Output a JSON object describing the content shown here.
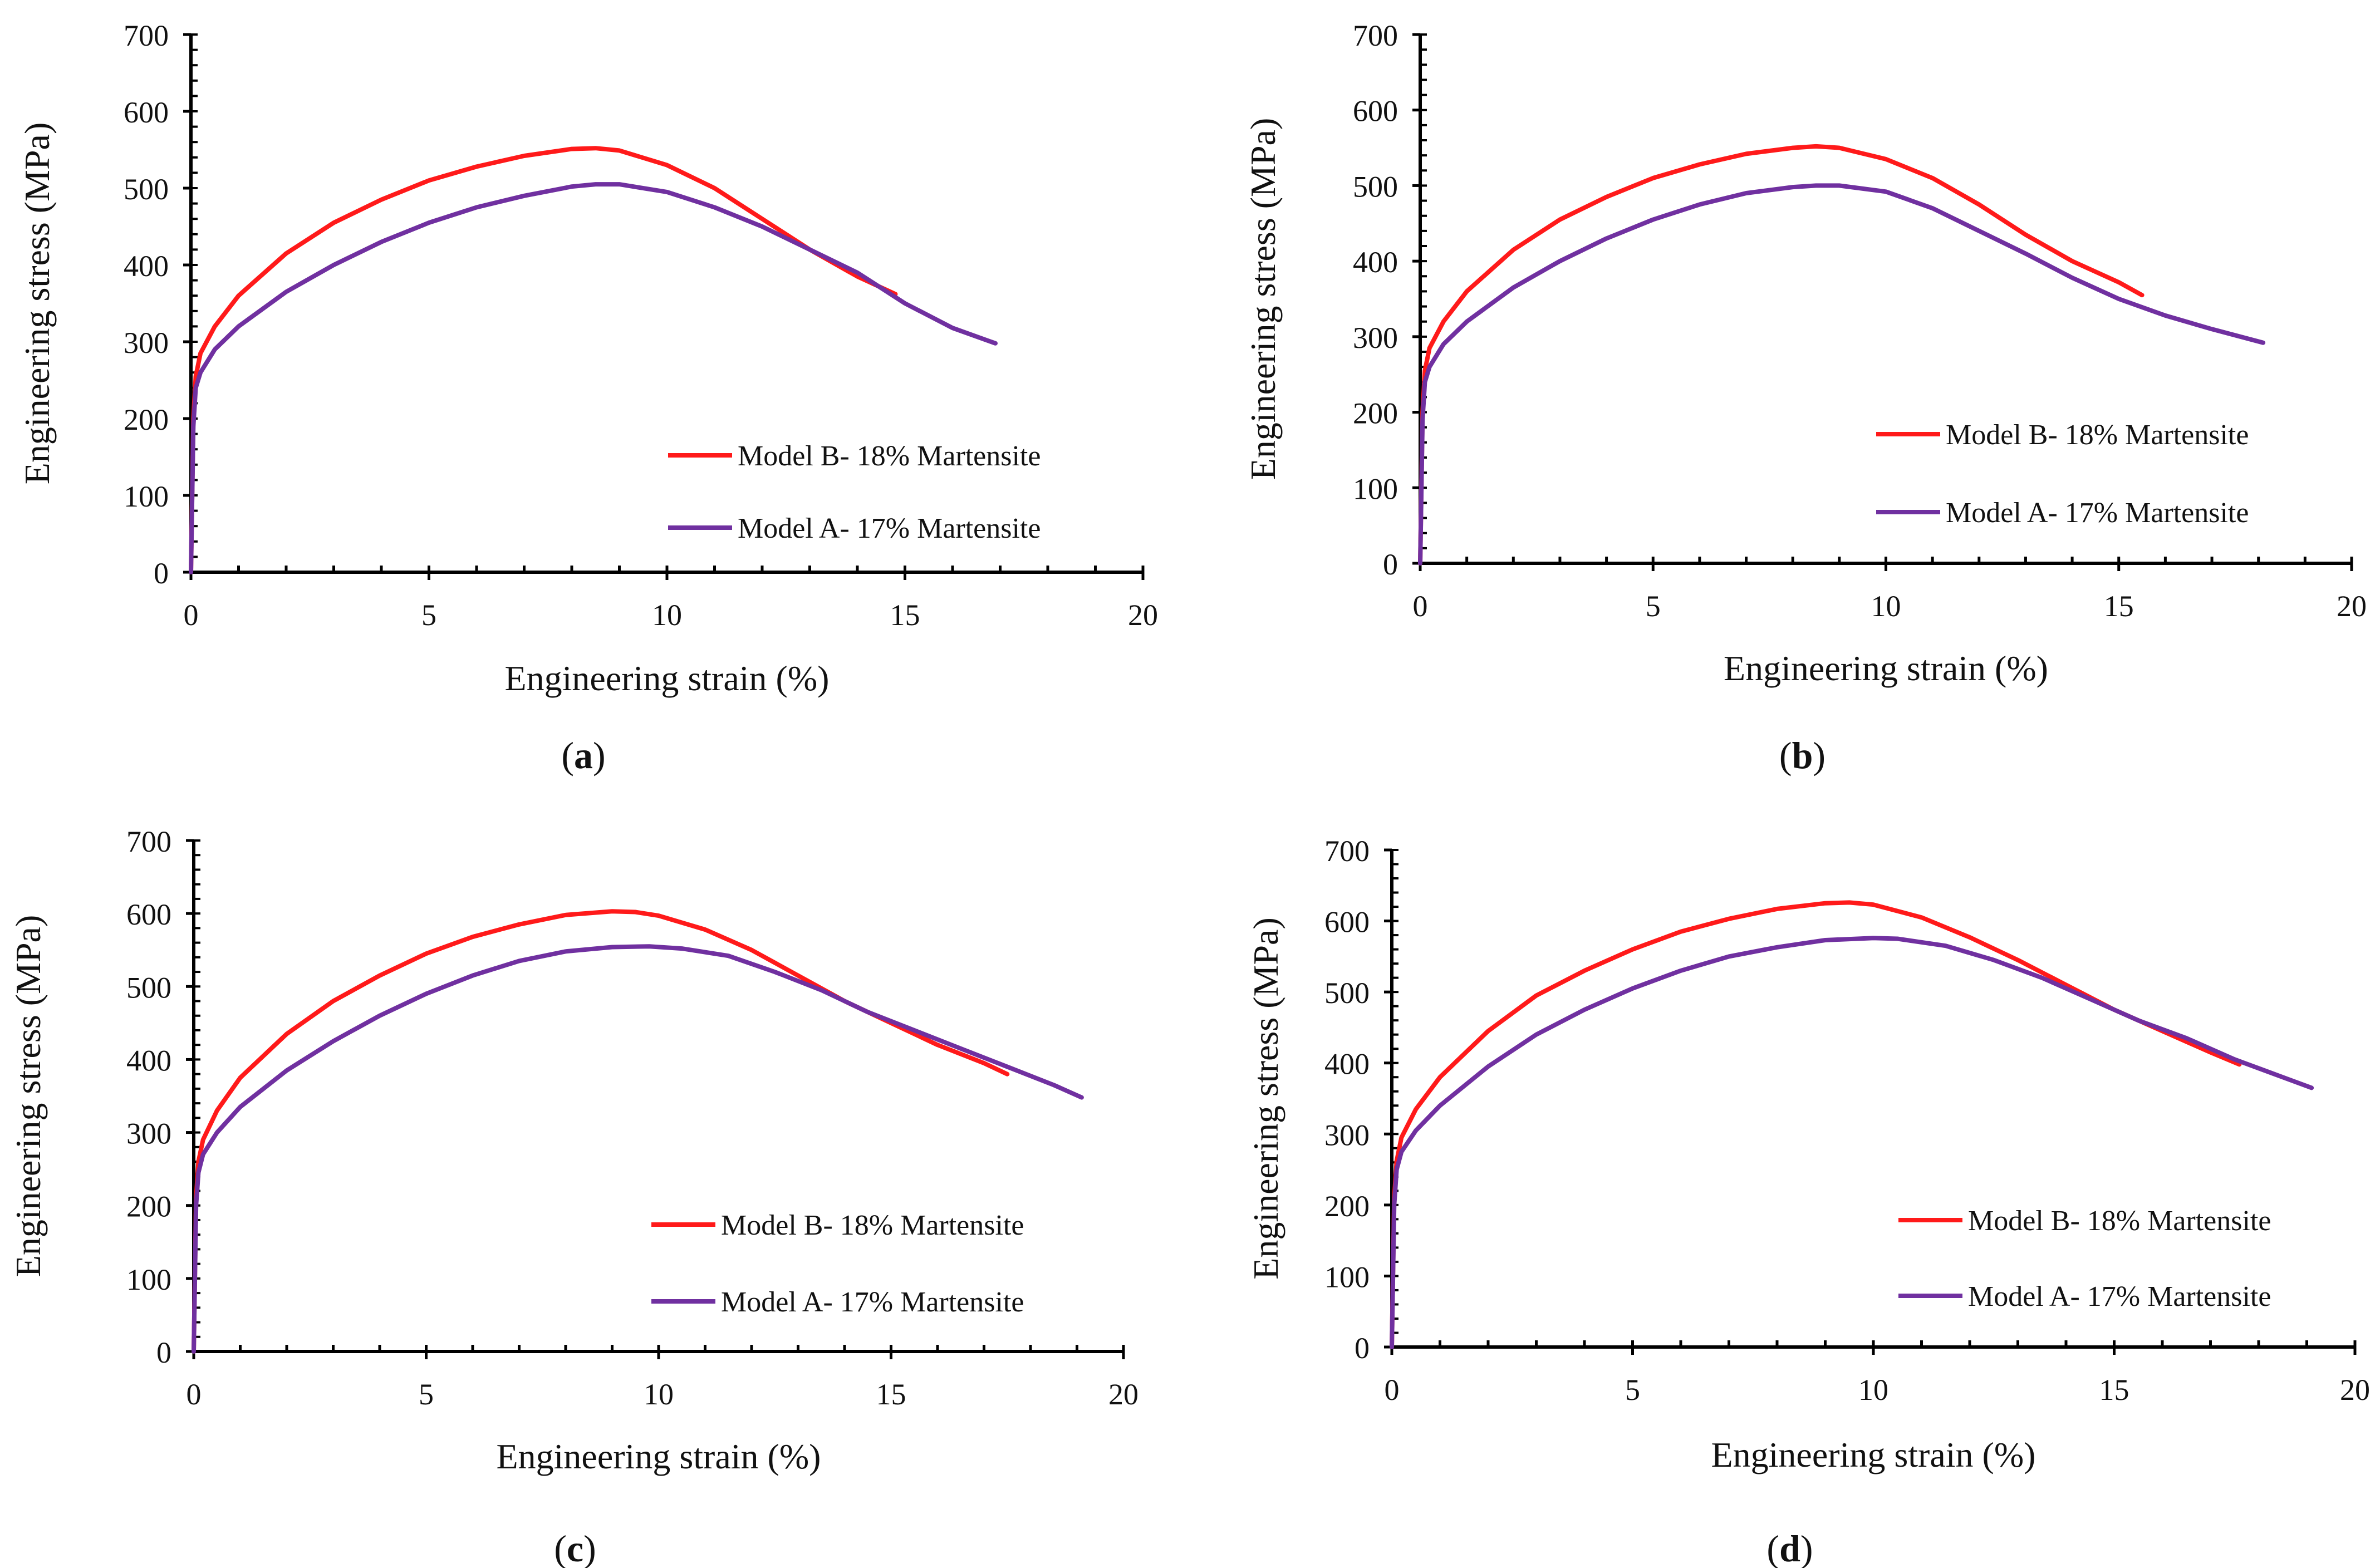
{
  "chart_data": [
    {
      "type": "line",
      "panel_label": "a",
      "xlabel": "Engineering strain (%)",
      "ylabel": "Engineering stress (MPa)",
      "xlim": [
        0,
        20
      ],
      "ylim": [
        0,
        700
      ],
      "xticks": [
        "0",
        "5",
        "10",
        "15",
        "20"
      ],
      "yticks": [
        "0",
        "100",
        "200",
        "300",
        "400",
        "500",
        "600",
        "700"
      ],
      "series": [
        {
          "name": "Model B- 18% Martensite",
          "color": "#ff1a1a",
          "x": [
            0,
            0.05,
            0.1,
            0.2,
            0.5,
            1,
            2,
            3,
            4,
            5,
            6,
            7,
            8,
            8.5,
            9,
            10,
            11,
            12,
            13,
            14,
            14.8
          ],
          "y": [
            0,
            200,
            255,
            285,
            320,
            360,
            415,
            455,
            485,
            510,
            528,
            542,
            551,
            552,
            549,
            530,
            500,
            460,
            420,
            385,
            362
          ]
        },
        {
          "name": "Model A- 17% Martensite",
          "color": "#7030a0",
          "x": [
            0,
            0.05,
            0.1,
            0.2,
            0.5,
            1,
            2,
            3,
            4,
            5,
            6,
            7,
            8,
            8.5,
            9,
            10,
            11,
            12,
            13,
            14,
            15,
            16,
            16.9
          ],
          "y": [
            0,
            190,
            240,
            260,
            290,
            320,
            365,
            400,
            430,
            455,
            475,
            490,
            502,
            505,
            505,
            495,
            475,
            450,
            420,
            390,
            350,
            318,
            298
          ]
        }
      ]
    },
    {
      "type": "line",
      "panel_label": "b",
      "xlabel": "Engineering strain (%)",
      "ylabel": "Engineering stress (MPa)",
      "xlim": [
        0,
        20
      ],
      "ylim": [
        0,
        700
      ],
      "xticks": [
        "0",
        "5",
        "10",
        "15",
        "20"
      ],
      "yticks": [
        "0",
        "100",
        "200",
        "300",
        "400",
        "500",
        "600",
        "700"
      ],
      "series": [
        {
          "name": "Model B- 18% Martensite",
          "color": "#ff1a1a",
          "x": [
            0,
            0.05,
            0.1,
            0.2,
            0.5,
            1,
            2,
            3,
            4,
            5,
            6,
            7,
            8,
            8.5,
            9,
            10,
            11,
            12,
            13,
            14,
            15,
            15.5
          ],
          "y": [
            0,
            200,
            255,
            285,
            320,
            360,
            415,
            455,
            485,
            510,
            528,
            542,
            550,
            552,
            550,
            535,
            510,
            475,
            435,
            400,
            372,
            355
          ]
        },
        {
          "name": "Model A- 17% Martensite",
          "color": "#7030a0",
          "x": [
            0,
            0.05,
            0.1,
            0.2,
            0.5,
            1,
            2,
            3,
            4,
            5,
            6,
            7,
            8,
            8.5,
            9,
            10,
            11,
            12,
            13,
            14,
            15,
            16,
            17,
            18.1
          ],
          "y": [
            0,
            190,
            240,
            260,
            290,
            320,
            365,
            400,
            430,
            455,
            475,
            490,
            498,
            500,
            500,
            492,
            470,
            440,
            410,
            378,
            350,
            328,
            310,
            292
          ]
        }
      ]
    },
    {
      "type": "line",
      "panel_label": "c",
      "xlabel": "Engineering strain (%)",
      "ylabel": "Engineering stress (MPa)",
      "xlim": [
        0,
        20
      ],
      "ylim": [
        0,
        700
      ],
      "xticks": [
        "0",
        "5",
        "10",
        "15",
        "20"
      ],
      "yticks": [
        "0",
        "100",
        "200",
        "300",
        "400",
        "500",
        "600",
        "700"
      ],
      "series": [
        {
          "name": "Model B- 18% Martensite",
          "color": "#ff1a1a",
          "x": [
            0,
            0.05,
            0.1,
            0.2,
            0.5,
            1,
            2,
            3,
            4,
            5,
            6,
            7,
            8,
            9,
            9.5,
            10,
            11,
            12,
            13,
            14,
            15,
            16,
            17,
            17.5
          ],
          "y": [
            0,
            210,
            260,
            290,
            330,
            375,
            435,
            480,
            515,
            545,
            568,
            585,
            598,
            603,
            602,
            597,
            578,
            550,
            515,
            480,
            450,
            420,
            395,
            380
          ]
        },
        {
          "name": "Model A- 17% Martensite",
          "color": "#7030a0",
          "x": [
            0,
            0.05,
            0.1,
            0.2,
            0.5,
            1,
            2,
            3,
            4,
            5,
            6,
            7,
            8,
            9,
            9.8,
            10.5,
            11.5,
            12.5,
            13.5,
            14.5,
            15.5,
            16.5,
            17.5,
            18.5,
            19.1
          ],
          "y": [
            0,
            200,
            245,
            270,
            300,
            335,
            385,
            425,
            460,
            490,
            515,
            535,
            548,
            554,
            555,
            552,
            542,
            520,
            495,
            465,
            440,
            415,
            390,
            365,
            348
          ]
        }
      ]
    },
    {
      "type": "line",
      "panel_label": "d",
      "xlabel": "Engineering strain (%)",
      "ylabel": "Engineering stress (MPa)",
      "xlim": [
        0,
        20
      ],
      "ylim": [
        0,
        700
      ],
      "xticks": [
        "0",
        "5",
        "10",
        "15",
        "20"
      ],
      "yticks": [
        "0",
        "100",
        "200",
        "300",
        "400",
        "500",
        "600",
        "700"
      ],
      "series": [
        {
          "name": "Model B- 18% Martensite",
          "color": "#ff1a1a",
          "x": [
            0,
            0.05,
            0.1,
            0.2,
            0.5,
            1,
            2,
            3,
            4,
            5,
            6,
            7,
            8,
            9,
            9.5,
            10,
            11,
            12,
            13,
            14,
            15,
            16,
            17,
            17.6
          ],
          "y": [
            0,
            210,
            262,
            295,
            335,
            380,
            445,
            495,
            530,
            560,
            585,
            603,
            617,
            625,
            626,
            623,
            605,
            577,
            545,
            510,
            475,
            445,
            415,
            398
          ]
        },
        {
          "name": "Model A- 17% Martensite",
          "color": "#7030a0",
          "x": [
            0,
            0.05,
            0.1,
            0.2,
            0.5,
            1,
            2,
            3,
            4,
            5,
            6,
            7,
            8,
            9,
            10,
            10.5,
            11.5,
            12.5,
            13.5,
            14.5,
            15.5,
            16.5,
            17.5,
            18.5,
            19.1
          ],
          "y": [
            0,
            200,
            250,
            275,
            305,
            340,
            395,
            440,
            475,
            505,
            530,
            550,
            563,
            573,
            576,
            575,
            565,
            545,
            520,
            490,
            460,
            435,
            405,
            380,
            365
          ]
        }
      ]
    }
  ]
}
